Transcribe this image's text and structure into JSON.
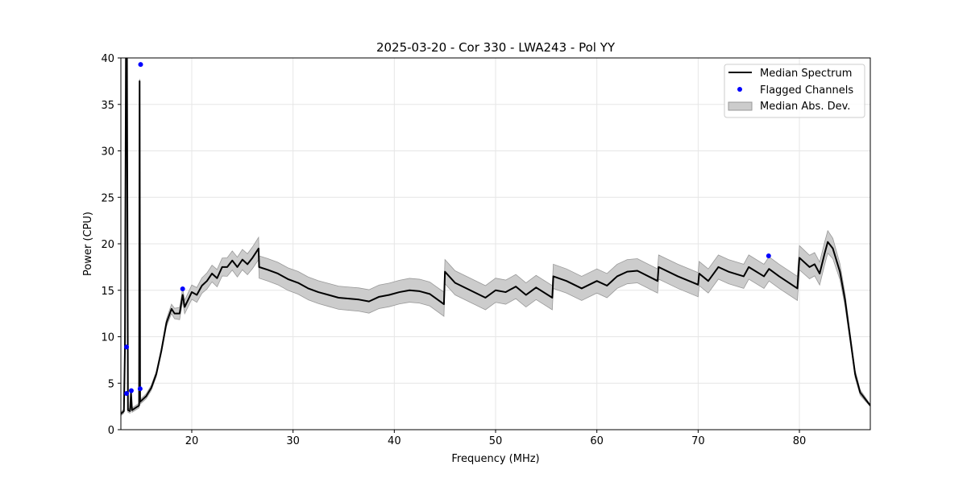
{
  "chart_data": {
    "type": "line",
    "title": "2025-03-20 - Cor 330 - LWA243 - Pol YY",
    "xlabel": "Frequency (MHz)",
    "ylabel": "Power (CPU)",
    "xlim": [
      13,
      87
    ],
    "ylim": [
      0,
      40
    ],
    "xticks": [
      20,
      30,
      40,
      50,
      60,
      70,
      80
    ],
    "yticks": [
      0,
      5,
      10,
      15,
      20,
      25,
      30,
      35,
      40
    ],
    "grid": true,
    "legend_position": "top-right",
    "legend": [
      "Median Spectrum",
      "Flagged Channels",
      "Median Abs. Dev."
    ],
    "colors": {
      "median": "#000000",
      "flagged": "#0000ff",
      "mad": "#cccccc",
      "mad_edge": "#999999"
    },
    "median_spectrum": [
      [
        13.0,
        1.7
      ],
      [
        13.3,
        2.0
      ],
      [
        13.4,
        8.5
      ],
      [
        13.5,
        40
      ],
      [
        13.6,
        40
      ],
      [
        13.7,
        2.1
      ],
      [
        13.9,
        2.0
      ],
      [
        14.0,
        4.0
      ],
      [
        14.1,
        2.1
      ],
      [
        14.8,
        2.6
      ],
      [
        14.85,
        37.5
      ],
      [
        14.9,
        3.0
      ],
      [
        15.5,
        3.6
      ],
      [
        16,
        4.5
      ],
      [
        16.5,
        6
      ],
      [
        17,
        8.5
      ],
      [
        17.5,
        11.5
      ],
      [
        18,
        13
      ],
      [
        18.3,
        12.5
      ],
      [
        18.8,
        12.5
      ],
      [
        19.1,
        14.5
      ],
      [
        19.3,
        13.2
      ],
      [
        20,
        14.8
      ],
      [
        20.5,
        14.5
      ],
      [
        21,
        15.5
      ],
      [
        21.5,
        16
      ],
      [
        22,
        16.8
      ],
      [
        22.5,
        16.3
      ],
      [
        23,
        17.5
      ],
      [
        23.5,
        17.5
      ],
      [
        24,
        18.2
      ],
      [
        24.5,
        17.5
      ],
      [
        25,
        18.3
      ],
      [
        25.5,
        17.8
      ],
      [
        26,
        18.5
      ],
      [
        26.6,
        19.5
      ],
      [
        26.65,
        17.5
      ],
      [
        27.5,
        17.2
      ],
      [
        28.5,
        16.8
      ],
      [
        29.5,
        16.2
      ],
      [
        30.5,
        15.8
      ],
      [
        31.5,
        15.2
      ],
      [
        32.5,
        14.8
      ],
      [
        33.5,
        14.5
      ],
      [
        34.5,
        14.2
      ],
      [
        35.5,
        14.1
      ],
      [
        36.5,
        14
      ],
      [
        37.5,
        13.8
      ],
      [
        38.5,
        14.3
      ],
      [
        39.5,
        14.5
      ],
      [
        40.5,
        14.8
      ],
      [
        41.5,
        15
      ],
      [
        42.5,
        14.9
      ],
      [
        43.5,
        14.6
      ],
      [
        44.9,
        13.5
      ],
      [
        45,
        17
      ],
      [
        46,
        15.8
      ],
      [
        47.5,
        15
      ],
      [
        49,
        14.2
      ],
      [
        50,
        15
      ],
      [
        51,
        14.8
      ],
      [
        52,
        15.4
      ],
      [
        53,
        14.5
      ],
      [
        54,
        15.3
      ],
      [
        55.6,
        14.2
      ],
      [
        55.7,
        16.5
      ],
      [
        57,
        16
      ],
      [
        58.5,
        15.2
      ],
      [
        60,
        16
      ],
      [
        61,
        15.5
      ],
      [
        62,
        16.5
      ],
      [
        63,
        17
      ],
      [
        64,
        17.1
      ],
      [
        66,
        16
      ],
      [
        66.1,
        17.5
      ],
      [
        68,
        16.5
      ],
      [
        70,
        15.6
      ],
      [
        70.1,
        16.8
      ],
      [
        71,
        16
      ],
      [
        72,
        17.5
      ],
      [
        73,
        17
      ],
      [
        74.5,
        16.5
      ],
      [
        75,
        17.5
      ],
      [
        76.5,
        16.5
      ],
      [
        77,
        17.3
      ],
      [
        78,
        16.5
      ],
      [
        79.8,
        15.2
      ],
      [
        80,
        18.5
      ],
      [
        81,
        17.5
      ],
      [
        81.5,
        17.8
      ],
      [
        82,
        16.8
      ],
      [
        82.5,
        19
      ],
      [
        82.8,
        20.2
      ],
      [
        83.3,
        19.5
      ],
      [
        84,
        17
      ],
      [
        84.5,
        14
      ],
      [
        85,
        10
      ],
      [
        85.5,
        6
      ],
      [
        86,
        4
      ],
      [
        87,
        2.6
      ]
    ],
    "mad_halfwidth_profile": [
      [
        13,
        0.2
      ],
      [
        17,
        0.3
      ],
      [
        19,
        0.7
      ],
      [
        26.6,
        1.2
      ],
      [
        45,
        1.3
      ],
      [
        80,
        1.3
      ],
      [
        83,
        1.2
      ],
      [
        85,
        0.5
      ],
      [
        87,
        0.1
      ]
    ],
    "flagged_channels": [
      [
        13.56,
        8.9
      ],
      [
        13.56,
        3.9
      ],
      [
        14.03,
        4.2
      ],
      [
        14.9,
        4.4
      ],
      [
        14.95,
        39.3
      ],
      [
        19.1,
        15.15
      ],
      [
        76.96,
        18.7
      ]
    ]
  }
}
